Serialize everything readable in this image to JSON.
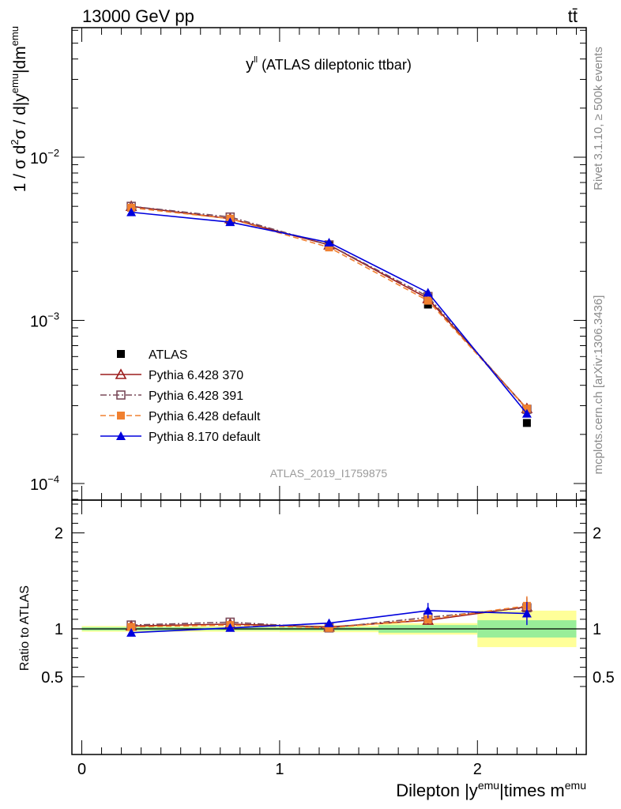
{
  "header": {
    "left": "13000 GeV pp",
    "right": "tt̄"
  },
  "plot_title": {
    "main": "y",
    "sup": "ll",
    "rest": " (ATLAS dileptonic ttbar)"
  },
  "side_labels": {
    "rivet": "Rivet 3.1.10, ≥ 500k events",
    "mcplots": "mcplots.cern.ch [arXiv:1306.3436]"
  },
  "watermark": "ATLAS_2019_I1759875",
  "y_label_main": {
    "p1": "1 / σ  d",
    "s1": "2",
    "p2": "σ / d|y",
    "s2": "emu",
    "p3": "|dm",
    "s3": "emu"
  },
  "y_label_ratio": "Ratio to ATLAS",
  "x_label": {
    "p1": "Dilepton |y",
    "s1": "emu",
    "p2": "|times m",
    "s2": "emu"
  },
  "chart_data": [
    {
      "type": "line",
      "panel": "main",
      "y_scale": "log",
      "ylim": [
        0.0001,
        0.05
      ],
      "xlim": [
        -0.05,
        2.55
      ],
      "y_tick_labels": [
        {
          "base": "10",
          "exp": "−4",
          "value": 0.0001
        },
        {
          "base": "10",
          "exp": "−3",
          "value": 0.001
        },
        {
          "base": "10",
          "exp": "−2",
          "value": 0.01
        }
      ],
      "legend_placement": "lower-left",
      "x": [
        0.25,
        0.75,
        1.25,
        1.75,
        2.25
      ],
      "series": [
        {
          "name": "ATLAS",
          "color": "#000000",
          "marker": "square-filled",
          "line": "none",
          "values": [
            0.0049,
            0.0041,
            0.0029,
            0.00125,
            0.000235
          ]
        },
        {
          "name": "Pythia 6.428 370",
          "color": "#9b1b1b",
          "marker": "triangle-open",
          "line": "solid",
          "values": [
            0.005,
            0.0042,
            0.0029,
            0.00136,
            0.000288
          ]
        },
        {
          "name": "Pythia 6.428 391",
          "color": "#7a4a5a",
          "marker": "square-open",
          "line": "dashdot",
          "values": [
            0.005,
            0.0043,
            0.0029,
            0.0014,
            0.000285
          ]
        },
        {
          "name": "Pythia 6.428 default",
          "color": "#f08030",
          "marker": "square-filled",
          "line": "dashed",
          "values": [
            0.0049,
            0.0042,
            0.0028,
            0.00132,
            0.000288
          ]
        },
        {
          "name": "Pythia 8.170 default",
          "color": "#0000dd",
          "marker": "triangle-filled",
          "line": "solid",
          "values": [
            0.0046,
            0.004,
            0.003,
            0.00148,
            0.000268
          ]
        }
      ]
    },
    {
      "type": "line",
      "panel": "ratio",
      "ylim": [
        0.3,
        2.4
      ],
      "y_ticks": [
        0.5,
        1,
        2
      ],
      "y_tick_labels": [
        "0.5",
        "1",
        "2"
      ],
      "x_ticks": [
        0,
        1,
        2
      ],
      "x_tick_labels": [
        "0",
        "1",
        "2"
      ],
      "band_bins": [
        [
          0,
          0.5
        ],
        [
          0.5,
          1.0
        ],
        [
          1.0,
          1.5
        ],
        [
          1.5,
          2.0
        ],
        [
          2.0,
          2.5
        ]
      ],
      "band_inner": [
        0.018,
        0.015,
        0.018,
        0.04,
        0.09
      ],
      "band_outer": [
        0.03,
        0.03,
        0.035,
        0.06,
        0.19
      ],
      "x": [
        0.25,
        0.75,
        1.25,
        1.75,
        2.25
      ],
      "series": [
        {
          "name": "Pythia 6.428 370",
          "values": [
            1.03,
            1.05,
            1.02,
            1.09,
            1.23
          ],
          "errors": [
            0.02,
            0.02,
            0.02,
            0.04,
            0.1
          ]
        },
        {
          "name": "Pythia 6.428 391",
          "values": [
            1.04,
            1.07,
            1.01,
            1.12,
            1.22
          ],
          "errors": [
            0.02,
            0.02,
            0.02,
            0.04,
            0.1
          ]
        },
        {
          "name": "Pythia 6.428 default",
          "values": [
            1.02,
            1.04,
            1.01,
            1.1,
            1.24
          ],
          "errors": [
            0.02,
            0.02,
            0.02,
            0.04,
            0.1
          ]
        },
        {
          "name": "Pythia 8.170 default",
          "values": [
            0.96,
            1.01,
            1.06,
            1.19,
            1.16
          ],
          "errors": [
            0.02,
            0.02,
            0.04,
            0.08,
            0.12
          ]
        }
      ]
    }
  ]
}
